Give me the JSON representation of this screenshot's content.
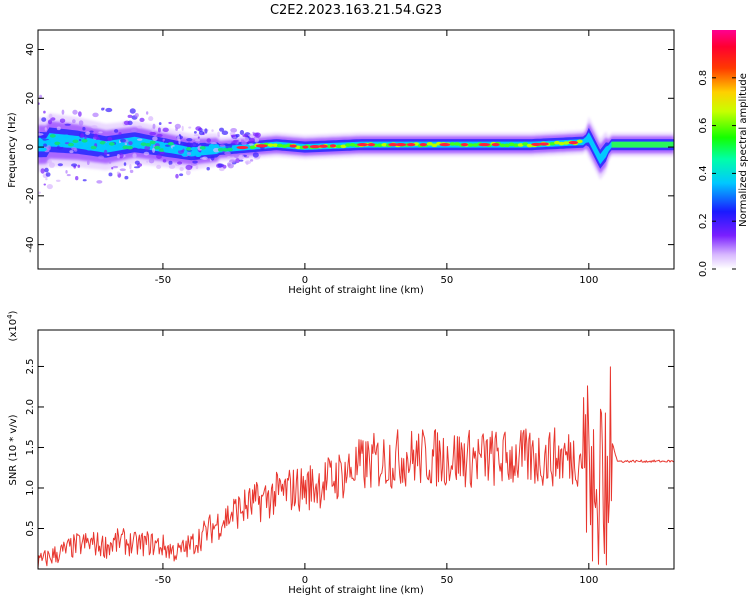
{
  "title": "C2E2.2023.163.21.54.G23",
  "chart_data": [
    {
      "type": "heatmap",
      "title": "C2E2.2023.163.21.54.G23",
      "xlabel": "Height of straight line (km)",
      "ylabel": "Frequency (Hz)",
      "xlim": [
        -94,
        130
      ],
      "ylim": [
        -50,
        48
      ],
      "x_ticks": [
        -50,
        0,
        50,
        100
      ],
      "y_ticks": [
        -40,
        -20,
        0,
        20,
        40
      ],
      "colorbar": {
        "label": "Normalized spectral amplitude",
        "range": [
          0.0,
          1.0
        ],
        "ticks": [
          0.0,
          0.2,
          0.4,
          0.6,
          0.8
        ],
        "colormap": "rainbow (violet → blue → cyan → green → yellow → red → pink)"
      },
      "ridge_frequency": [
        {
          "x": -90,
          "f": 3
        },
        {
          "x": -80,
          "f": 2
        },
        {
          "x": -70,
          "f": 0
        },
        {
          "x": -60,
          "f": 2
        },
        {
          "x": -50,
          "f": 0
        },
        {
          "x": -40,
          "f": -2
        },
        {
          "x": -30,
          "f": -1
        },
        {
          "x": -20,
          "f": 0
        },
        {
          "x": -10,
          "f": 1
        },
        {
          "x": 0,
          "f": 0
        },
        {
          "x": 20,
          "f": 1
        },
        {
          "x": 40,
          "f": 1
        },
        {
          "x": 60,
          "f": 1
        },
        {
          "x": 80,
          "f": 1
        },
        {
          "x": 98,
          "f": 2
        },
        {
          "x": 100,
          "f": 4
        },
        {
          "x": 104,
          "f": -5
        },
        {
          "x": 108,
          "f": 1
        },
        {
          "x": 130,
          "f": 1
        }
      ]
    },
    {
      "type": "line",
      "xlabel": "Height of straight line (km)",
      "ylabel": "SNR (10 * v/v)",
      "y_multiplier": "(x10",
      "y_multiplier_exp": "4",
      "y_multiplier_close": ")",
      "xlim": [
        -94,
        130
      ],
      "ylim": [
        0,
        2.95
      ],
      "x_ticks": [
        -50,
        0,
        50,
        100
      ],
      "y_ticks": [
        0.5,
        1.0,
        1.5,
        2.0,
        2.5
      ],
      "color": "#e8362e",
      "series": [
        {
          "x": [
            -94,
            -90,
            -85,
            -80,
            -75,
            -70,
            -65,
            -60,
            -55,
            -50,
            -45,
            -40,
            -35,
            -30,
            -25,
            -20,
            -15,
            -10,
            -5,
            0,
            5,
            10,
            15,
            20,
            25,
            30,
            35,
            40,
            45,
            50,
            55,
            60,
            65,
            70,
            75,
            80,
            85,
            90,
            95,
            98,
            100,
            102,
            104,
            106,
            108,
            110,
            115,
            120,
            125,
            130
          ],
          "values": [
            0.08,
            0.15,
            0.22,
            0.3,
            0.32,
            0.28,
            0.35,
            0.3,
            0.32,
            0.28,
            0.2,
            0.3,
            0.45,
            0.58,
            0.7,
            0.78,
            0.85,
            0.92,
            0.98,
            1.0,
            1.05,
            1.12,
            1.2,
            1.28,
            1.33,
            1.35,
            1.38,
            1.38,
            1.37,
            1.38,
            1.37,
            1.36,
            1.37,
            1.36,
            1.37,
            1.36,
            1.38,
            1.38,
            1.39,
            1.4,
            1.5,
            0.7,
            1.8,
            0.3,
            1.6,
            1.33,
            1.33,
            1.33,
            1.33,
            1.33
          ]
        }
      ]
    }
  ]
}
